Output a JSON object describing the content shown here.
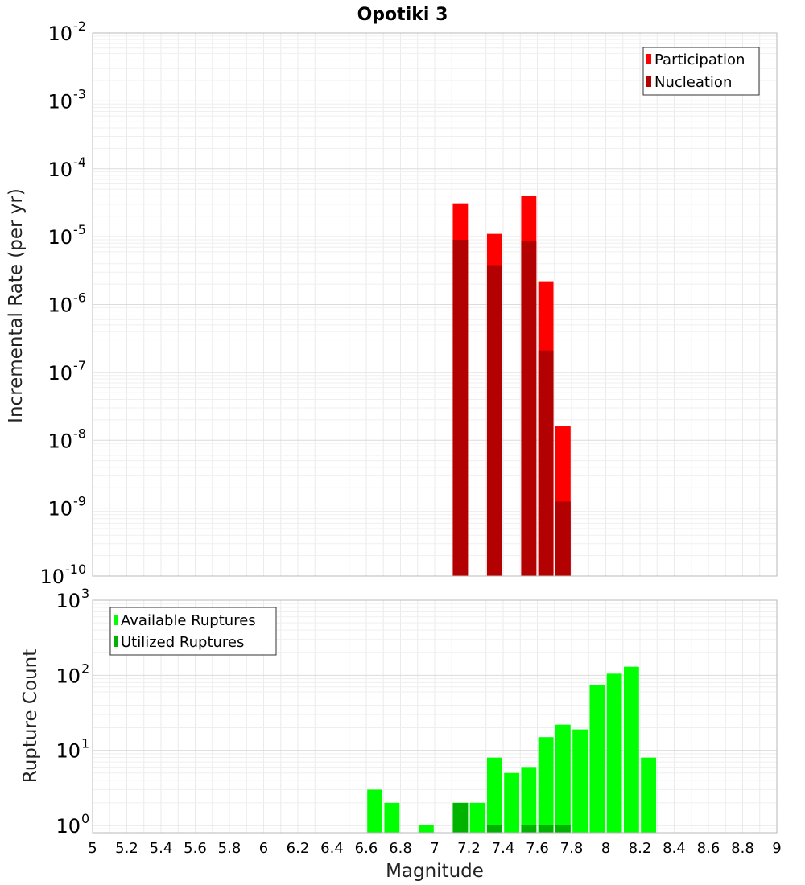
{
  "chart_data": [
    {
      "type": "bar",
      "title": "Opotiki 3",
      "xlabel": "",
      "ylabel": "Incremental Rate (per yr)",
      "yscale": "log",
      "xlim": [
        5,
        9
      ],
      "ylim": [
        1e-10,
        0.01
      ],
      "y_exponents": [
        "-10",
        "-9",
        "-8",
        "-7",
        "-6",
        "-5",
        "-4",
        "-3",
        "-2"
      ],
      "y_base": "10",
      "grid": true,
      "legend_position": "top-right",
      "bar_width": 0.1,
      "series": [
        {
          "name": "Participation",
          "color": "#ff0000",
          "x": [
            7.15,
            7.35,
            7.55,
            7.65,
            7.75
          ],
          "values": [
            3.1e-05,
            1.1e-05,
            4e-05,
            2.2e-06,
            1.6e-08
          ]
        },
        {
          "name": "Nucleation",
          "color": "#b30000",
          "x": [
            7.15,
            7.35,
            7.55,
            7.65,
            7.75
          ],
          "values": [
            9e-06,
            3.8e-06,
            8.5e-06,
            2.1e-07,
            1.25e-09
          ]
        }
      ]
    },
    {
      "type": "bar",
      "title": "",
      "xlabel": "Magnitude",
      "ylabel": "Rupture Count",
      "yscale": "log",
      "xlim": [
        5,
        9
      ],
      "ylim": [
        0.8,
        1000
      ],
      "y_exponents": [
        "0",
        "1",
        "2",
        "3"
      ],
      "y_base": "10",
      "grid": true,
      "legend_position": "top-left",
      "bar_width": 0.1,
      "x_ticks": [
        "5",
        "5.2",
        "5.4",
        "5.6",
        "5.8",
        "6",
        "6.2",
        "6.4",
        "6.6",
        "6.8",
        "7",
        "7.2",
        "7.4",
        "7.6",
        "7.8",
        "8",
        "8.2",
        "8.4",
        "8.6",
        "8.8",
        "9"
      ],
      "series": [
        {
          "name": "Available Ruptures",
          "color": "#00ff00",
          "x": [
            6.65,
            6.75,
            6.95,
            7.15,
            7.25,
            7.35,
            7.45,
            7.55,
            7.65,
            7.75,
            7.85,
            7.95,
            8.05,
            8.15,
            8.25
          ],
          "values": [
            3,
            2,
            1,
            2,
            2,
            8,
            5,
            6,
            15,
            22,
            19,
            75,
            105,
            130,
            8
          ]
        },
        {
          "name": "Utilized Ruptures",
          "color": "#00b300",
          "x": [
            7.15,
            7.35,
            7.55,
            7.65,
            7.75
          ],
          "values": [
            2,
            1,
            1,
            1,
            1
          ]
        }
      ]
    }
  ]
}
